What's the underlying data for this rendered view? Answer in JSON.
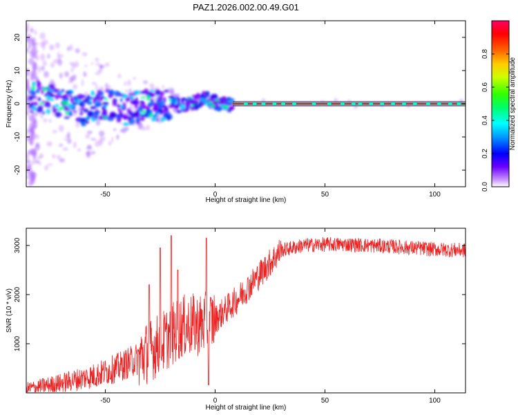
{
  "title": "PAZ1.2026.002.00.49.G01",
  "chart_data": [
    {
      "type": "heatmap",
      "xlabel": "Height of straight line (km)",
      "ylabel": "Frequency (Hz)",
      "xlim": [
        -86,
        114
      ],
      "ylim": [
        -25,
        25
      ],
      "xticks": [
        -50,
        0,
        50,
        100
      ],
      "yticks": [
        -20,
        -10,
        0,
        10,
        20
      ],
      "xtick_labels": [
        "-50",
        "0",
        "50",
        "100"
      ],
      "ytick_labels": [
        "-20",
        "-10",
        "0",
        "10",
        "20"
      ],
      "colorbar": {
        "label": "Normalized spectral amplitude",
        "range": [
          0,
          1
        ],
        "ticks": [
          0.0,
          0.2,
          0.4,
          0.6,
          0.8
        ],
        "tick_labels": [
          "0.0",
          "0.2",
          "0.4",
          "0.6",
          "0.8"
        ]
      },
      "ridge": {
        "x": [
          -80,
          -75,
          -70,
          -65,
          -60,
          -55,
          -50,
          -45,
          -40,
          -35,
          -30,
          -25,
          -20,
          -15,
          -10,
          -5,
          0,
          5,
          10,
          20,
          40,
          60,
          80,
          100,
          114
        ],
        "frequency": [
          2,
          1,
          0,
          -1,
          -2,
          -1,
          0,
          -1,
          -2,
          -1,
          0,
          -1,
          0,
          -0.5,
          0,
          2,
          0.5,
          0,
          0,
          0,
          0,
          0,
          0,
          0,
          0
        ]
      }
    },
    {
      "type": "line",
      "xlabel": "Height of straight line (km)",
      "ylabel": "SNR (10 * v/v)",
      "xlim": [
        -86,
        114
      ],
      "ylim": [
        0,
        3350
      ],
      "xticks": [
        -50,
        0,
        50,
        100
      ],
      "yticks": [
        1000,
        2000,
        3000
      ],
      "xtick_labels": [
        "-50",
        "0",
        "50",
        "100"
      ],
      "ytick_labels": [
        "1000",
        "2000",
        "3000"
      ],
      "color": "#ee2222",
      "trend": {
        "x": [
          -86,
          -70,
          -55,
          -45,
          -35,
          -25,
          -15,
          -5,
          0,
          5,
          10,
          15,
          20,
          25,
          30,
          40,
          50,
          60,
          70,
          80,
          90,
          100,
          114
        ],
        "snr": [
          80,
          200,
          350,
          500,
          700,
          1000,
          1350,
          1400,
          1500,
          1700,
          1900,
          2150,
          2400,
          2650,
          2900,
          3000,
          3020,
          3020,
          3000,
          2980,
          2950,
          2920,
          2900
        ]
      },
      "spikes": [
        {
          "x": -30,
          "snr": 2200
        },
        {
          "x": -25,
          "snr": 2950
        },
        {
          "x": -20,
          "snr": 3200
        },
        {
          "x": -17,
          "snr": 2500
        },
        {
          "x": -4,
          "snr": 3150
        },
        {
          "x": -3,
          "snr": 160
        }
      ]
    }
  ]
}
